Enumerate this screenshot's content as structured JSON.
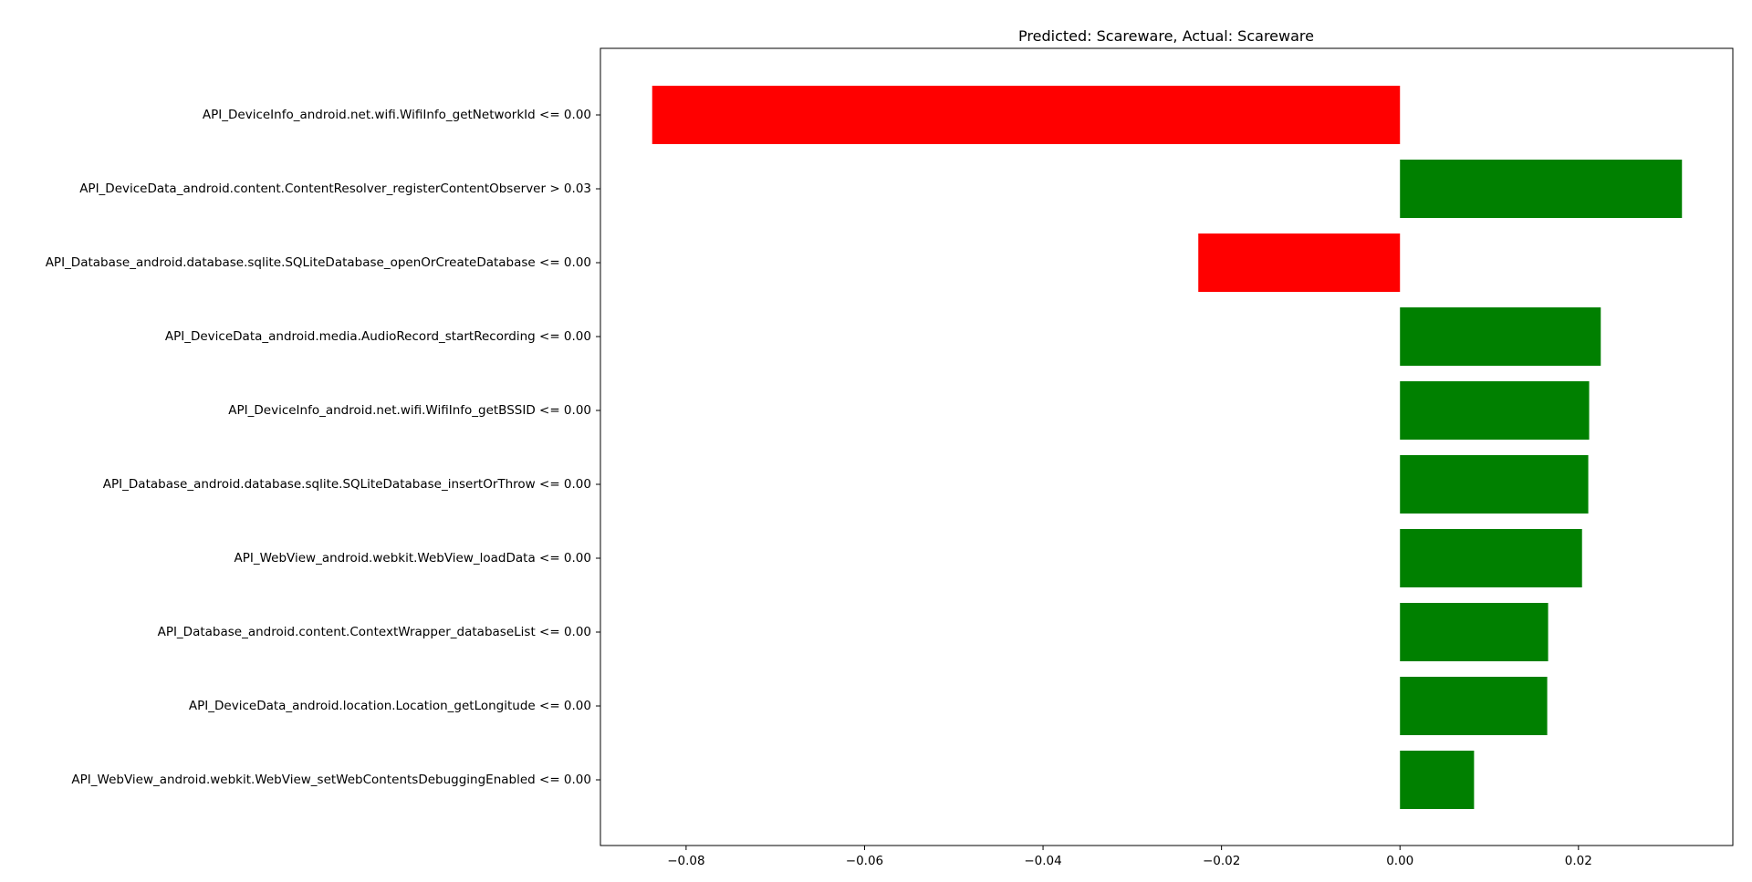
{
  "chart_data": {
    "type": "bar",
    "orientation": "horizontal",
    "title": "Predicted: Scareware, Actual: Scareware",
    "xlabel": "",
    "ylabel": "",
    "categories": [
      "API_DeviceInfo_android.net.wifi.WifiInfo_getNetworkId <= 0.00",
      "API_DeviceData_android.content.ContentResolver_registerContentObserver > 0.03",
      "API_Database_android.database.sqlite.SQLiteDatabase_openOrCreateDatabase <= 0.00",
      "API_DeviceData_android.media.AudioRecord_startRecording <= 0.00",
      "API_DeviceInfo_android.net.wifi.WifiInfo_getBSSID <= 0.00",
      "API_Database_android.database.sqlite.SQLiteDatabase_insertOrThrow <= 0.00",
      "API_WebView_android.webkit.WebView_loadData <= 0.00",
      "API_Database_android.content.ContextWrapper_databaseList <= 0.00",
      "API_DeviceData_android.location.Location_getLongitude <= 0.00",
      "API_WebView_android.webkit.WebView_setWebContentsDebuggingEnabled <= 0.00"
    ],
    "values": [
      -0.0838,
      0.0316,
      -0.0226,
      0.0225,
      0.0212,
      0.0211,
      0.0204,
      0.0166,
      0.0165,
      0.0083
    ],
    "xlim": [
      -0.0896,
      0.0373
    ],
    "xticks": [
      -0.08,
      -0.06,
      -0.04,
      -0.02,
      0.0,
      0.02
    ],
    "xtick_labels": [
      "−0.08",
      "−0.06",
      "−0.04",
      "−0.02",
      "0.00",
      "0.02"
    ],
    "colors": {
      "positive": "#008000",
      "negative": "#ff0000"
    },
    "grid": false,
    "legend": "none"
  }
}
